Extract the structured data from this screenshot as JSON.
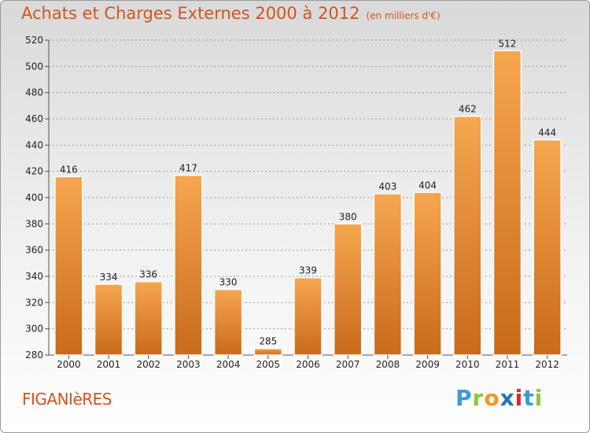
{
  "title": {
    "main": "Achats et Charges Externes 2000 à 2012",
    "sub": "(en milliers d'€)"
  },
  "commune": "FIGANIèRES",
  "logo": {
    "text": "Proxiti",
    "letters": [
      {
        "ch": "P",
        "color": "#3a9ad9"
      },
      {
        "ch": "r",
        "color": "#8cc63f"
      },
      {
        "ch": "o",
        "color": "#f7941d"
      },
      {
        "ch": "x",
        "color": "#2c6fb7"
      },
      {
        "ch": "i",
        "color": "#e2282a"
      },
      {
        "ch": "t",
        "color": "#3a9ad9"
      },
      {
        "ch": "i",
        "color": "#8cc63f"
      }
    ]
  },
  "colors": {
    "title": "#d2541e",
    "bar_light": "#f7a650",
    "bar_dark": "#c86a1a",
    "grid": "#9a9a9a"
  },
  "chart_data": {
    "type": "bar",
    "categories": [
      "2000",
      "2001",
      "2002",
      "2003",
      "2004",
      "2005",
      "2006",
      "2007",
      "2008",
      "2009",
      "2010",
      "2011",
      "2012"
    ],
    "values": [
      416,
      334,
      336,
      417,
      330,
      285,
      339,
      380,
      403,
      404,
      462,
      512,
      444
    ],
    "title": "Achats et Charges Externes 2000 à 2012",
    "ylim": [
      280,
      520
    ],
    "yticks": [
      280,
      300,
      320,
      340,
      360,
      380,
      400,
      420,
      440,
      460,
      480,
      500,
      520
    ],
    "grid": true,
    "legend": "none"
  }
}
